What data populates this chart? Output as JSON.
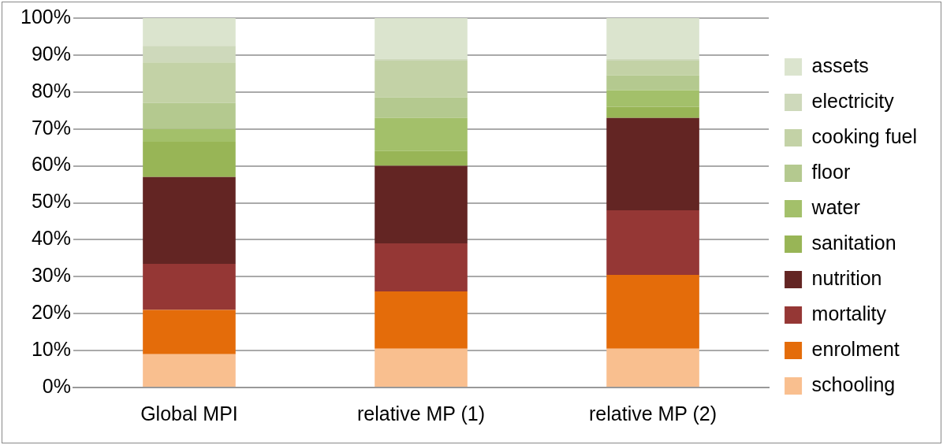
{
  "chart_data": {
    "type": "bar",
    "stacked": true,
    "categories": [
      "Global MPI",
      "relative MP (1)",
      "relative MP (2)"
    ],
    "series": [
      {
        "name": "schooling",
        "color": "#f9bf8f",
        "values": [
          9,
          10.5,
          10.5
        ]
      },
      {
        "name": "enrolment",
        "color": "#e46c0a",
        "values": [
          12,
          15.5,
          20
        ]
      },
      {
        "name": "mortality",
        "color": "#953735",
        "values": [
          12.5,
          13,
          17.5
        ]
      },
      {
        "name": "nutrition",
        "color": "#632523",
        "values": [
          23.5,
          21,
          25
        ]
      },
      {
        "name": "sanitation",
        "color": "#98b556",
        "values": [
          9.5,
          4,
          3
        ]
      },
      {
        "name": "water",
        "color": "#a3c06a",
        "values": [
          3.5,
          9,
          4.5
        ]
      },
      {
        "name": "floor",
        "color": "#b4c98f",
        "values": [
          7,
          5.5,
          4
        ]
      },
      {
        "name": "cooking fuel",
        "color": "#c3d2a6",
        "values": [
          11,
          10,
          4
        ]
      },
      {
        "name": "electricity",
        "color": "#ced9bb",
        "values": [
          4.5,
          0.5,
          0.5
        ]
      },
      {
        "name": "assets",
        "color": "#dbe4ce",
        "values": [
          7.5,
          11,
          11
        ]
      }
    ],
    "ylim": [
      0,
      100
    ],
    "yticks": [
      {
        "value": 0,
        "label": "0%"
      },
      {
        "value": 10,
        "label": "10%"
      },
      {
        "value": 20,
        "label": "20%"
      },
      {
        "value": 30,
        "label": "30%"
      },
      {
        "value": 40,
        "label": "40%"
      },
      {
        "value": 50,
        "label": "50%"
      },
      {
        "value": 60,
        "label": "60%"
      },
      {
        "value": 70,
        "label": "70%"
      },
      {
        "value": 80,
        "label": "80%"
      },
      {
        "value": 90,
        "label": "90%"
      },
      {
        "value": 100,
        "label": "100%"
      }
    ],
    "grid": "y",
    "legend": "right"
  }
}
